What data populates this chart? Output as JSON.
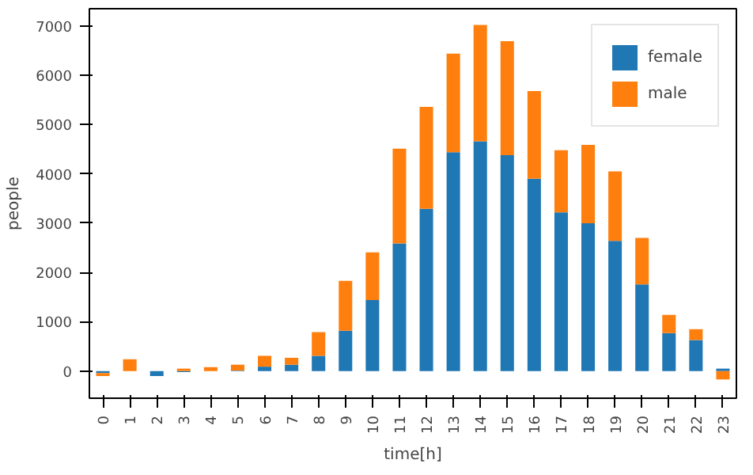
{
  "chart_data": {
    "type": "bar",
    "stacked": true,
    "xlabel": "time[h]",
    "ylabel": "people",
    "categories": [
      "0",
      "1",
      "2",
      "3",
      "4",
      "5",
      "6",
      "7",
      "8",
      "9",
      "10",
      "11",
      "12",
      "13",
      "14",
      "15",
      "16",
      "17",
      "18",
      "19",
      "20",
      "21",
      "22",
      "23"
    ],
    "series": [
      {
        "name": "female",
        "color": "#1f77b4",
        "values": [
          -40,
          0,
          -100,
          -20,
          0,
          10,
          90,
          130,
          310,
          820,
          1440,
          2590,
          3290,
          4440,
          4660,
          4380,
          3900,
          3220,
          3000,
          2640,
          1760,
          770,
          630,
          50
        ]
      },
      {
        "name": "male",
        "color": "#ff7f0e",
        "values": [
          -60,
          240,
          0,
          50,
          80,
          120,
          220,
          140,
          480,
          1010,
          970,
          1920,
          2070,
          2000,
          2360,
          2310,
          1780,
          1260,
          1590,
          1410,
          940,
          370,
          220,
          -170
        ]
      }
    ],
    "ylim": [
      -550,
      7350
    ],
    "yticks": [
      0,
      1000,
      2000,
      3000,
      4000,
      5000,
      6000,
      7000
    ],
    "grid": false,
    "legend": "top right"
  }
}
